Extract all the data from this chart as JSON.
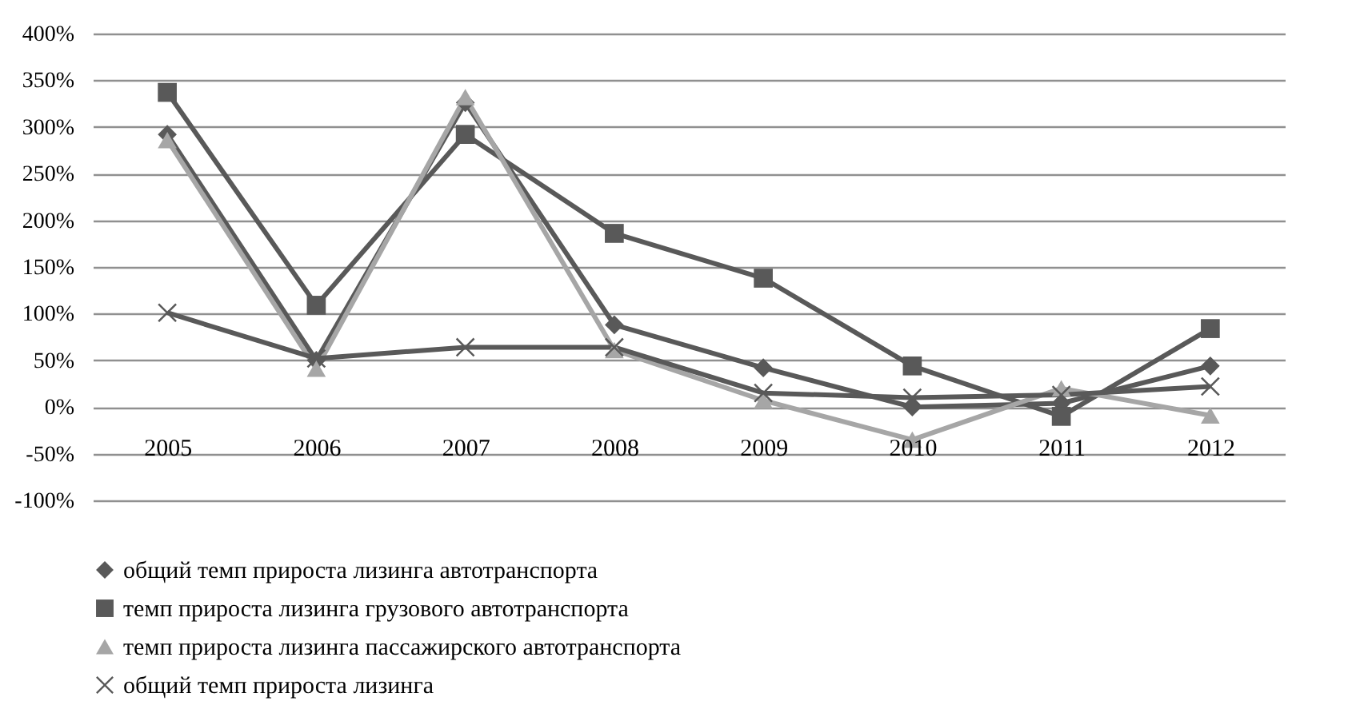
{
  "chart_data": {
    "type": "line",
    "categories": [
      "2005",
      "2006",
      "2007",
      "2008",
      "2009",
      "2010",
      "2011",
      "2012"
    ],
    "series": [
      {
        "name": "общий темп прироста лизинга автотранспорта",
        "color": "#595959",
        "marker": "diamond",
        "values": [
          292,
          50,
          326,
          88,
          42,
          0,
          4,
          44
        ]
      },
      {
        "name": "темп прироста лизинга грузового автотранспорта",
        "color": "#595959",
        "marker": "square",
        "values": [
          337,
          109,
          292,
          186,
          138,
          44,
          -10,
          84
        ]
      },
      {
        "name": "темп прироста лизинга пассажирского автотранспорта",
        "color": "#a6a6a6",
        "marker": "triangle",
        "values": [
          286,
          41,
          332,
          61,
          7,
          -35,
          20,
          -9
        ]
      },
      {
        "name": "общий темп прироста лизинга",
        "color": "#595959",
        "marker": "cross",
        "values": [
          101,
          52,
          64,
          64,
          15,
          10,
          13,
          22
        ]
      }
    ],
    "ylim": [
      -100,
      400
    ],
    "yticks": [
      {
        "value": -100,
        "label": "-100%"
      },
      {
        "value": -50,
        "label": "-50%"
      },
      {
        "value": 0,
        "label": "0%"
      },
      {
        "value": 50,
        "label": "50%"
      },
      {
        "value": 100,
        "label": "100%"
      },
      {
        "value": 150,
        "label": "150%"
      },
      {
        "value": 200,
        "label": "200%"
      },
      {
        "value": 250,
        "label": "250%"
      },
      {
        "value": 300,
        "label": "300%"
      },
      {
        "value": 350,
        "label": "350%"
      },
      {
        "value": 400,
        "label": "400%"
      }
    ],
    "grid": "y",
    "legend": "bottom"
  }
}
